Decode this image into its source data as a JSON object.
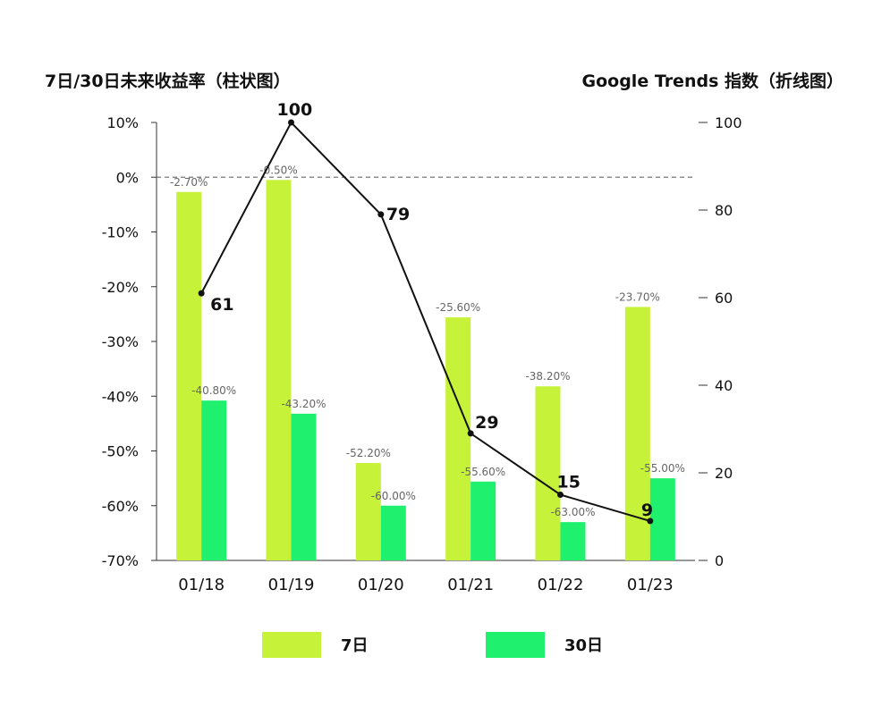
{
  "chart_data": {
    "type": "bar",
    "left_title": "7日/30日未来收益率（柱状图）",
    "right_title": "Google Trends 指数（折线图）",
    "categories": [
      "01/18",
      "01/19",
      "01/20",
      "01/21",
      "01/22",
      "01/23"
    ],
    "series": [
      {
        "name": "7日",
        "type": "bar",
        "axis": "left",
        "color": "#c6f23a",
        "values": [
          -2.7,
          -0.5,
          -52.2,
          -25.6,
          -38.2,
          -23.7
        ],
        "labels": [
          "-2.70%",
          "-0.50%",
          "-52.20%",
          "-25.60%",
          "-38.20%",
          "-23.70%"
        ]
      },
      {
        "name": "30日",
        "type": "bar",
        "axis": "left",
        "color": "#1ff06e",
        "values": [
          -40.8,
          -43.2,
          -60.0,
          -55.6,
          -63.0,
          -55.0
        ],
        "labels": [
          "-40.80%",
          "-43.20%",
          "-60.00%",
          "-55.60%",
          "-63.00%",
          "-55.00%"
        ]
      },
      {
        "name": "Google Trends",
        "type": "line",
        "axis": "right",
        "color": "#111111",
        "values": [
          61,
          100,
          79,
          29,
          15,
          9
        ],
        "labels": [
          "61",
          "100",
          "79",
          "29",
          "15",
          "9"
        ]
      }
    ],
    "y_left": {
      "ylim": [
        -70,
        10
      ],
      "ticks": [
        10,
        0,
        -10,
        -20,
        -30,
        -40,
        -50,
        -60,
        -70
      ],
      "tick_labels": [
        "10%",
        "0%",
        "-10%",
        "-20%",
        "-30%",
        "-40%",
        "-50%",
        "-60%",
        "-70%"
      ]
    },
    "y_right": {
      "ylim": [
        0,
        100
      ],
      "ticks": [
        100,
        80,
        60,
        40,
        20,
        0
      ],
      "tick_labels": [
        "100",
        "80",
        "60",
        "40",
        "20",
        "0"
      ]
    },
    "zero_line": "dashed",
    "grid": false,
    "legend": {
      "position": "bottom",
      "entries": [
        {
          "label": "7日",
          "color": "#c6f23a"
        },
        {
          "label": "30日",
          "color": "#1ff06e"
        }
      ]
    }
  }
}
